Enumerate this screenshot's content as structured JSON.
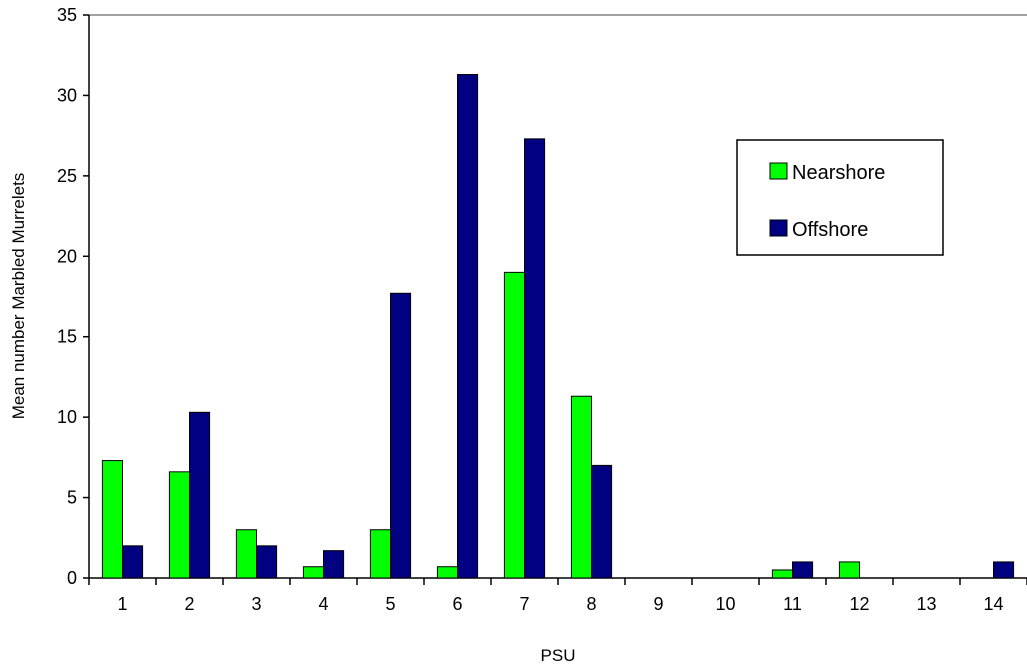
{
  "chart_data": {
    "type": "bar",
    "title": "",
    "xlabel": "PSU",
    "ylabel": "Mean number Marbled Murrelets",
    "categories": [
      "1",
      "2",
      "3",
      "4",
      "5",
      "6",
      "7",
      "8",
      "9",
      "10",
      "11",
      "12",
      "13",
      "14"
    ],
    "series": [
      {
        "name": "Nearshore",
        "color": "#00ff00",
        "values": [
          7.3,
          6.6,
          3.0,
          0.7,
          3.0,
          0.7,
          19.0,
          11.3,
          0,
          0,
          0.5,
          1.0,
          0,
          0
        ]
      },
      {
        "name": "Offshore",
        "color": "#000080",
        "values": [
          2.0,
          10.3,
          2.0,
          1.7,
          17.7,
          31.3,
          27.3,
          7.0,
          0,
          0,
          1.0,
          0,
          0,
          1.0
        ]
      }
    ],
    "ylim": [
      0,
      35
    ],
    "yticks": [
      "0",
      "5",
      "10",
      "15",
      "20",
      "25",
      "30",
      "35"
    ],
    "grid": false,
    "legend_position": "right"
  }
}
